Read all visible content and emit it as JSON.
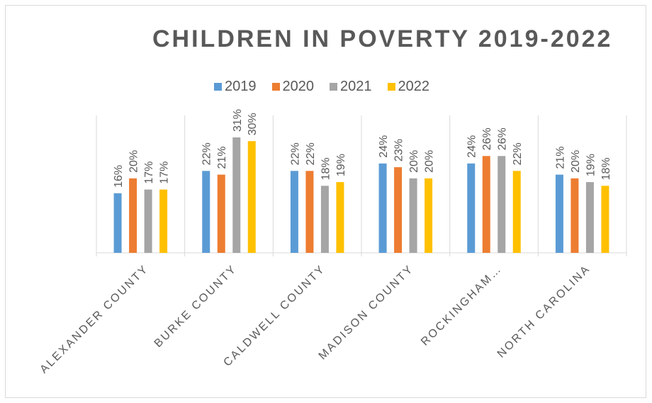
{
  "chart_data": {
    "type": "bar",
    "title": "CHILDREN IN POVERTY 2019-2022",
    "categories": [
      "ALEXANDER COUNTY",
      "BURKE COUNTY",
      "CALDWELL COUNTY",
      "MADISON COUNTY",
      "ROCKINGHAM…",
      "NORTH CAROLINA"
    ],
    "series": [
      {
        "name": "2019",
        "color": "#5b9bd5",
        "values": [
          16,
          22,
          22,
          24,
          24,
          21
        ],
        "labels": [
          "16%",
          "22%",
          "22%",
          "24%",
          "24%",
          "21%"
        ]
      },
      {
        "name": "2020",
        "color": "#ed7d31",
        "values": [
          20,
          21,
          22,
          23,
          26,
          20
        ],
        "labels": [
          "20%",
          "21%",
          "22%",
          "23%",
          "26%",
          "20%"
        ]
      },
      {
        "name": "2021",
        "color": "#a5a5a5",
        "values": [
          17,
          31,
          18,
          20,
          26,
          19
        ],
        "labels": [
          "17%",
          "31%",
          "18%",
          "20%",
          "26%",
          "19%"
        ]
      },
      {
        "name": "2022",
        "color": "#ffc000",
        "values": [
          17,
          30,
          19,
          20,
          22,
          18
        ],
        "labels": [
          "17%",
          "30%",
          "19%",
          "20%",
          "22%",
          "18%"
        ]
      }
    ],
    "ylim": [
      0,
      31
    ],
    "xlabel": "",
    "ylabel": "",
    "grid": "vertical category separators",
    "legend_position": "top"
  }
}
